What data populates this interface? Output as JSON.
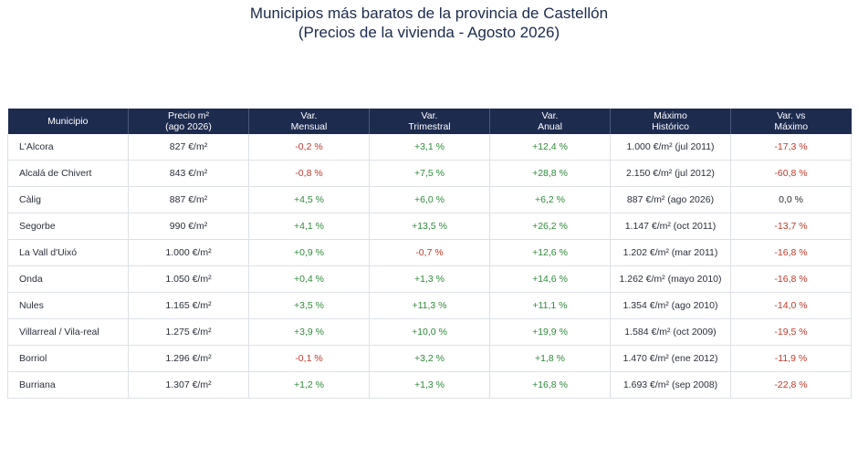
{
  "title": {
    "line1": "Municipios más baratos de la provincia de Castellón",
    "line2": "(Precios de la vivienda - Agosto 2026)"
  },
  "colors": {
    "header_bg": "#1d2b4f",
    "positive": "#2e8b3a",
    "negative": "#c0392b"
  },
  "table": {
    "headers": [
      [
        "Municipio"
      ],
      [
        "Precio m²",
        "(ago 2026)"
      ],
      [
        "Var.",
        "Mensual"
      ],
      [
        "Var.",
        "Trimestral"
      ],
      [
        "Var.",
        "Anual"
      ],
      [
        "Máximo",
        "Histórico"
      ],
      [
        "Var. vs",
        "Máximo"
      ]
    ],
    "rows": [
      [
        "L'Alcora",
        "827 €/m²",
        "-0,2 %",
        "+3,1 %",
        "+12,4 %",
        "1.000 €/m² (jul 2011)",
        "-17,3 %"
      ],
      [
        "Alcalá de Chivert",
        "843 €/m²",
        "-0,8 %",
        "+7,5 %",
        "+28,8 %",
        "2.150 €/m² (jul 2012)",
        "-60,8 %"
      ],
      [
        "Càlig",
        "887 €/m²",
        "+4,5 %",
        "+6,0 %",
        "+6,2 %",
        "887 €/m² (ago 2026)",
        "0,0 %"
      ],
      [
        "Segorbe",
        "990 €/m²",
        "+4,1 %",
        "+13,5 %",
        "+26,2 %",
        "1.147 €/m² (oct 2011)",
        "-13,7 %"
      ],
      [
        "La Vall d'Uixó",
        "1.000 €/m²",
        "+0,9 %",
        "-0,7 %",
        "+12,6 %",
        "1.202 €/m² (mar 2011)",
        "-16,8 %"
      ],
      [
        "Onda",
        "1.050 €/m²",
        "+0,4 %",
        "+1,3 %",
        "+14,6 %",
        "1.262 €/m² (mayo 2010)",
        "-16,8 %"
      ],
      [
        "Nules",
        "1.165 €/m²",
        "+3,5 %",
        "+11,3 %",
        "+11,1 %",
        "1.354 €/m² (ago 2010)",
        "-14,0 %"
      ],
      [
        "Villarreal / Vila-real",
        "1.275 €/m²",
        "+3,9 %",
        "+10,0 %",
        "+19,9 %",
        "1.584 €/m² (oct 2009)",
        "-19,5 %"
      ],
      [
        "Borriol",
        "1.296 €/m²",
        "-0,1 %",
        "+3,2 %",
        "+1,8 %",
        "1.470 €/m² (ene 2012)",
        "-11,9 %"
      ],
      [
        "Burriana",
        "1.307 €/m²",
        "+1,2 %",
        "+1,3 %",
        "+16,8 %",
        "1.693 €/m² (sep 2008)",
        "-22,8 %"
      ]
    ]
  }
}
